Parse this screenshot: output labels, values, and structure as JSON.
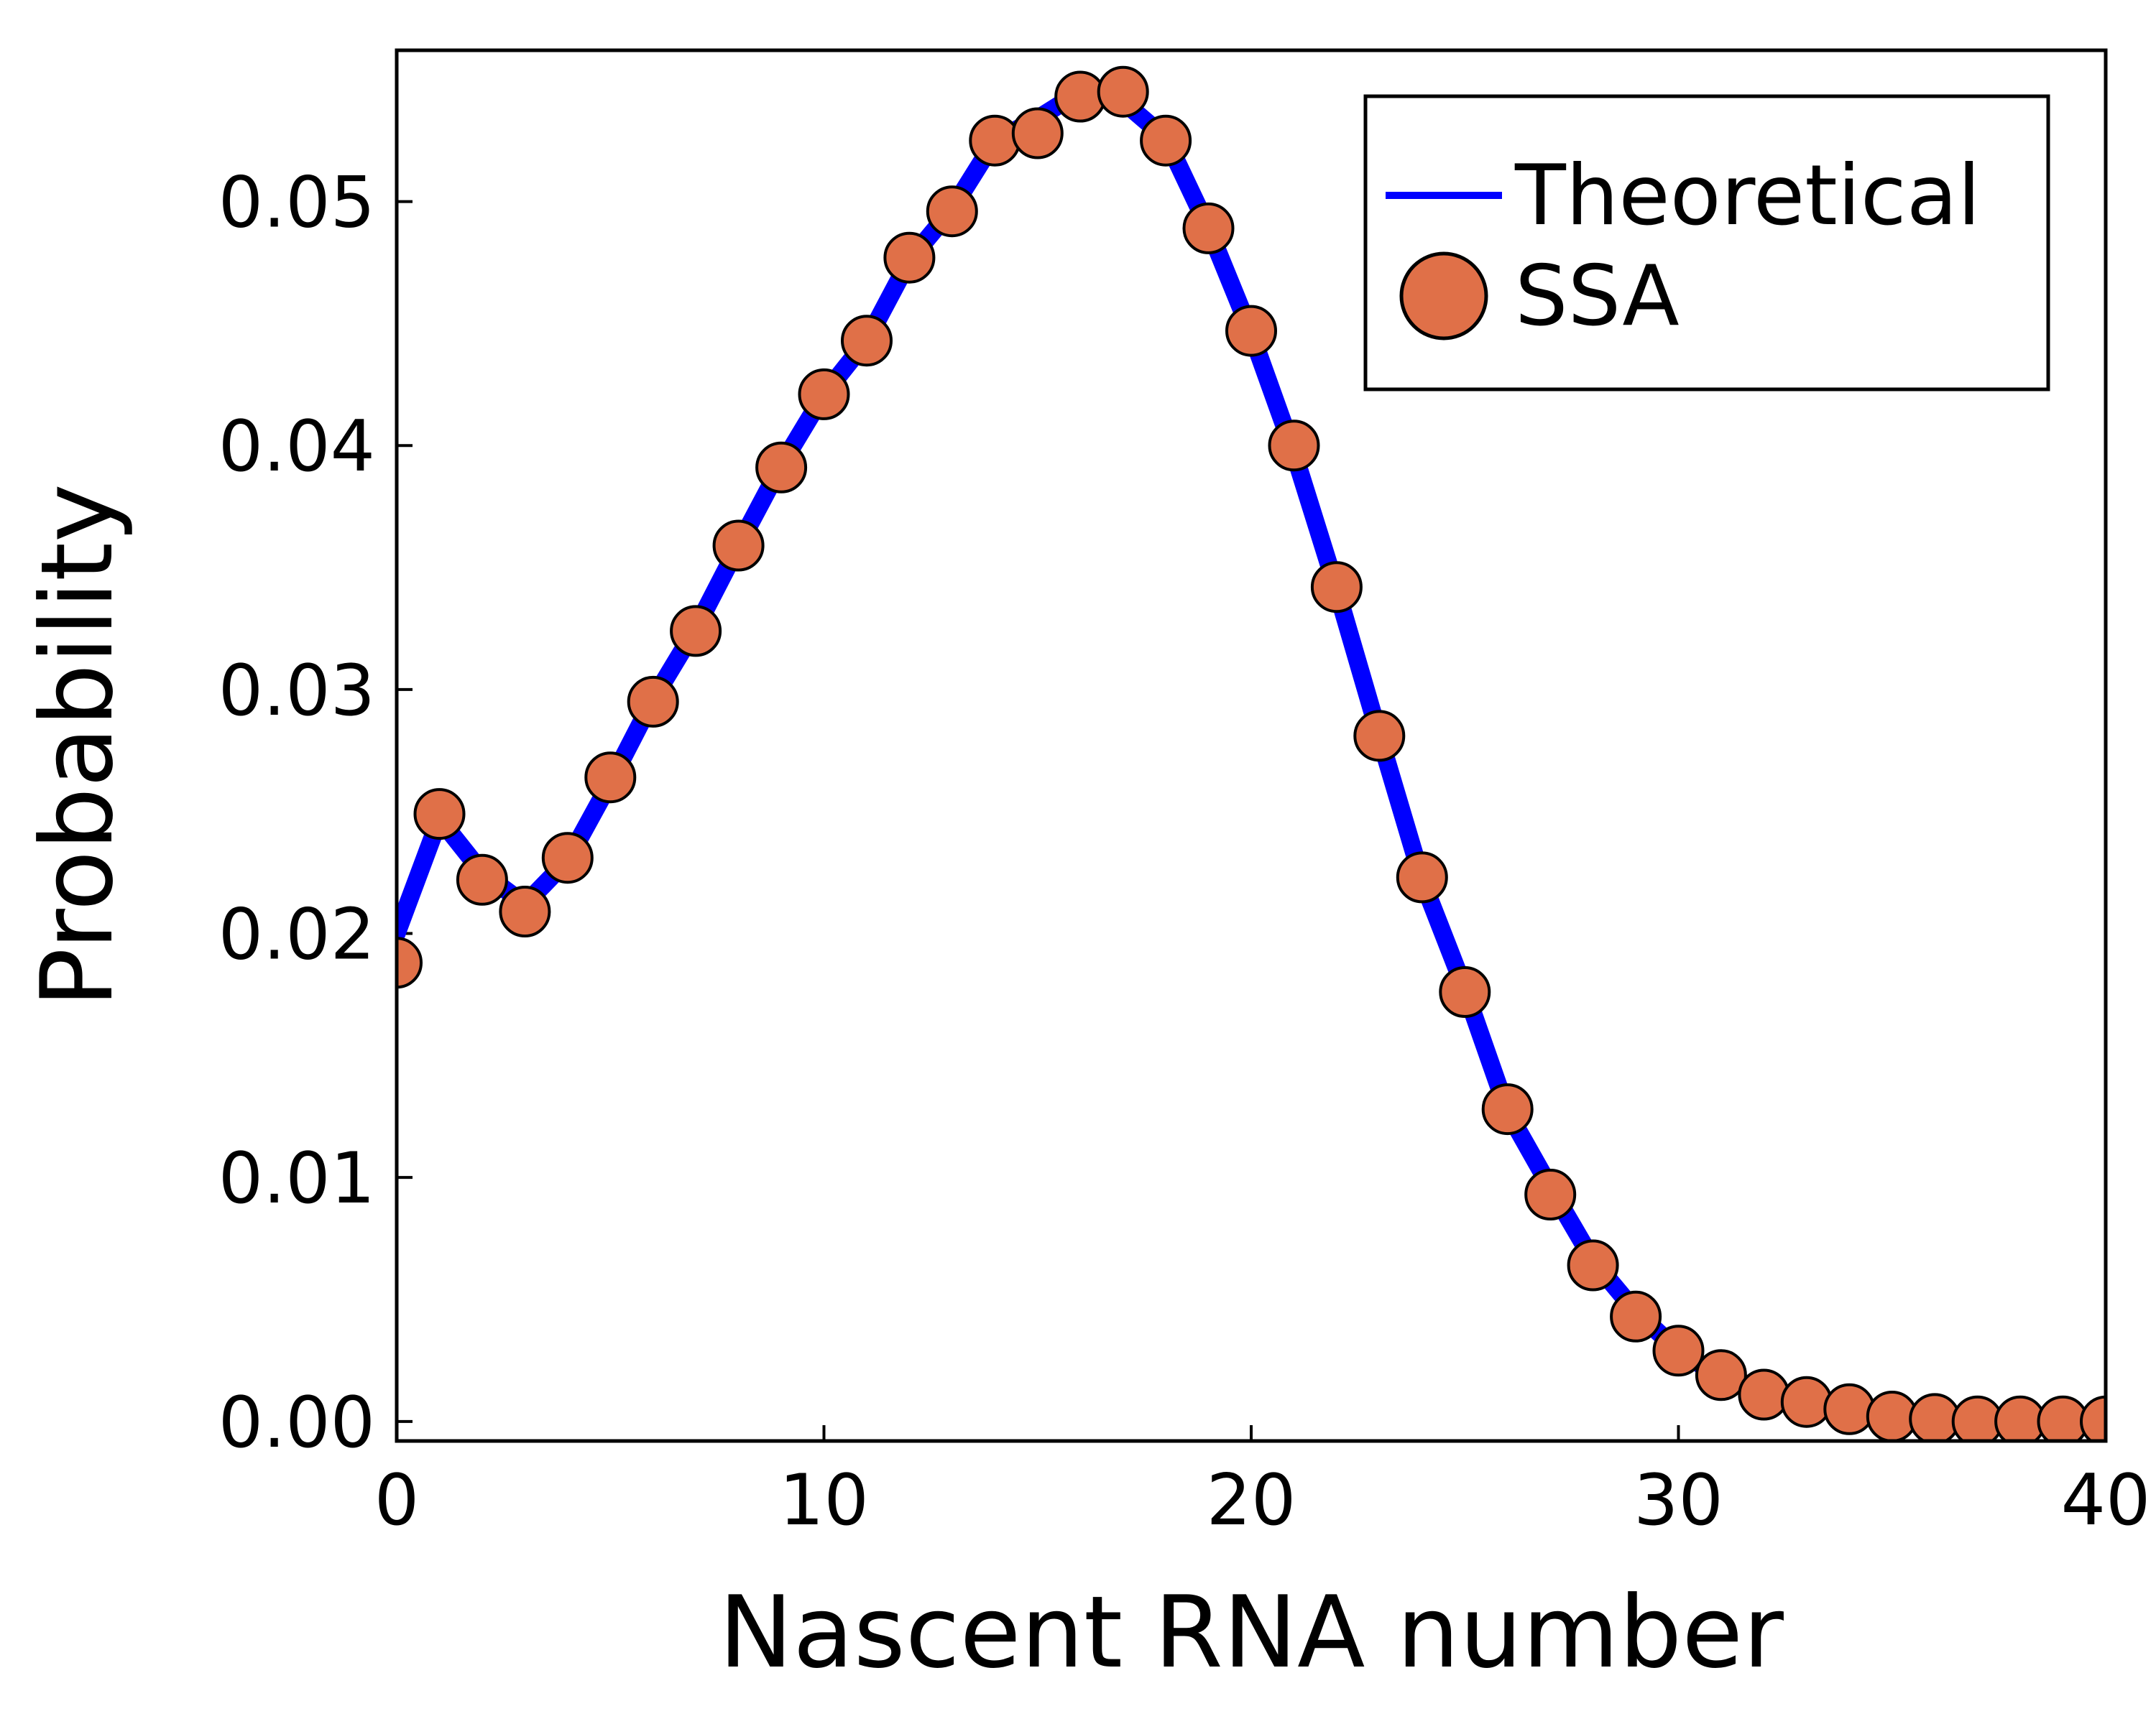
{
  "colors": {
    "theoretical_line": "#0000ff",
    "ssa_marker_fill": "#e07048",
    "ssa_marker_stroke": "#000000",
    "axes": "#000000",
    "background": "#ffffff"
  },
  "chart_data": {
    "type": "line",
    "xlabel": "Nascent RNA number",
    "ylabel": "Probability",
    "xlim": [
      0,
      40
    ],
    "ylim": [
      -0.0008,
      0.0562
    ],
    "xticks": [
      0,
      10,
      20,
      30,
      40
    ],
    "xtick_labels": [
      "0",
      "10",
      "20",
      "30",
      "40"
    ],
    "yticks": [
      0.0,
      0.01,
      0.02,
      0.03,
      0.04,
      0.05
    ],
    "ytick_labels": [
      "0.00",
      "0.01",
      "0.02",
      "0.03",
      "0.04",
      "0.05"
    ],
    "grid": false,
    "legend_position": "top-right",
    "x": [
      0,
      1,
      2,
      3,
      4,
      5,
      6,
      7,
      8,
      9,
      10,
      11,
      12,
      13,
      14,
      15,
      16,
      17,
      18,
      19,
      20,
      21,
      22,
      23,
      24,
      25,
      26,
      27,
      28,
      29,
      30,
      31,
      32,
      33,
      34,
      35,
      36,
      37,
      38,
      39,
      40
    ],
    "series": [
      {
        "name": "Theoretical",
        "style": "line",
        "values": [
          0.02,
          0.0247,
          0.0225,
          0.0212,
          0.023,
          0.0262,
          0.0296,
          0.0325,
          0.0359,
          0.0392,
          0.0421,
          0.0443,
          0.0476,
          0.0497,
          0.0525,
          0.0534,
          0.0545,
          0.0541,
          0.0526,
          0.0489,
          0.0446,
          0.0397,
          0.0341,
          0.0281,
          0.0222,
          0.0177,
          0.0127,
          0.0096,
          0.0066,
          0.0045,
          0.0029,
          0.0018,
          0.0011,
          0.0007,
          0.0004,
          0.0002,
          0.0001,
          0.0001,
          0.0,
          0.0,
          0.0
        ]
      },
      {
        "name": "SSA",
        "style": "scatter",
        "values": [
          0.0188,
          0.0249,
          0.0222,
          0.0209,
          0.0231,
          0.0264,
          0.0295,
          0.0324,
          0.0359,
          0.0391,
          0.0421,
          0.0443,
          0.0477,
          0.0496,
          0.0525,
          0.0528,
          0.0543,
          0.0545,
          0.0525,
          0.0489,
          0.0447,
          0.04,
          0.0342,
          0.0281,
          0.0223,
          0.0176,
          0.0128,
          0.0093,
          0.0064,
          0.0043,
          0.0029,
          0.0019,
          0.0011,
          0.0008,
          0.0005,
          0.0002,
          0.0001,
          0.0,
          0.0,
          0.0,
          0.0
        ]
      }
    ]
  }
}
